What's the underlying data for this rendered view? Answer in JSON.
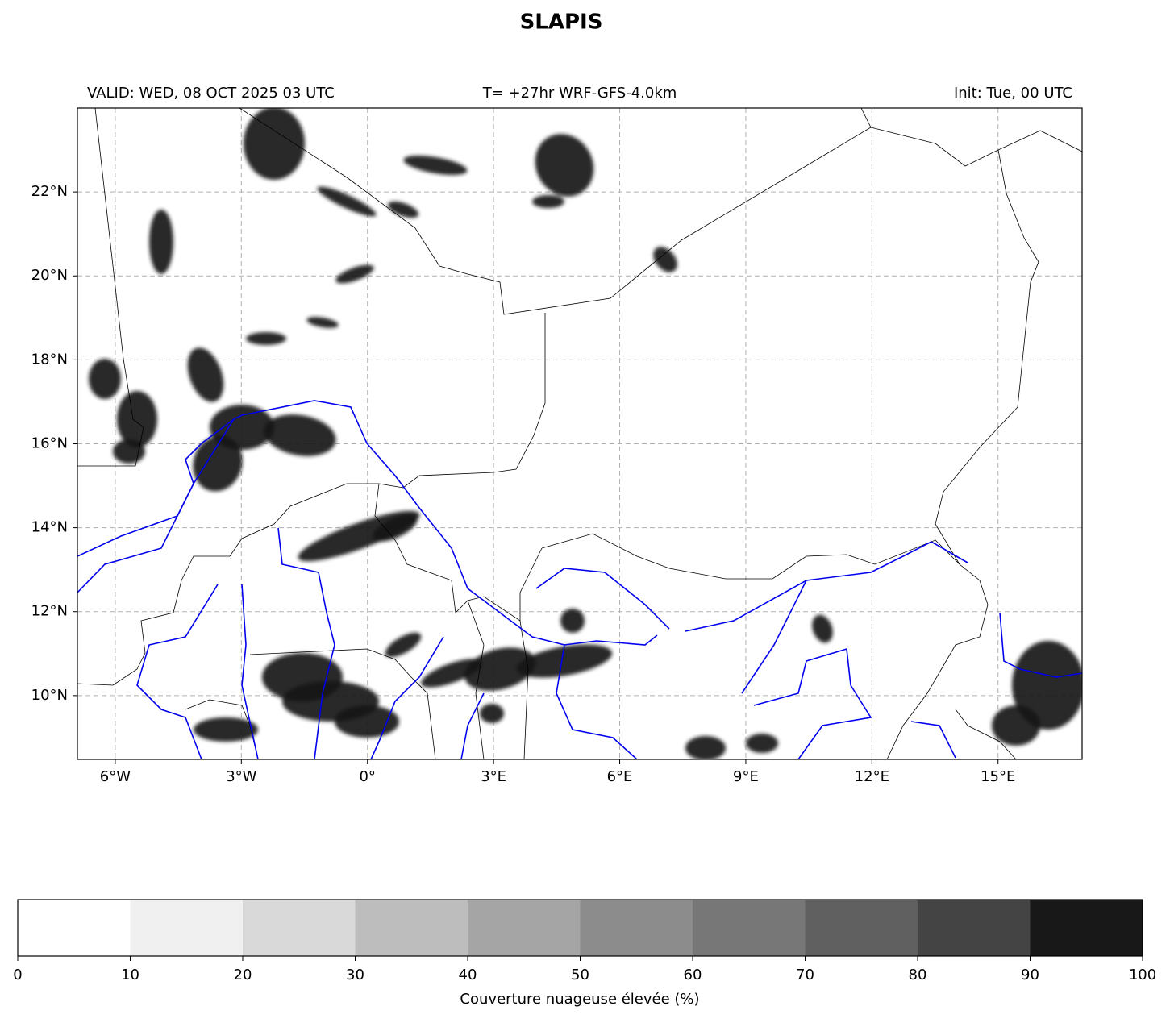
{
  "chart_data": {
    "type": "map",
    "title": "SLAPIS",
    "subtitle_left": "VALID: WED, 08 OCT 2025 03 UTC",
    "subtitle_center": "T= +27hr WRF-GFS-4.0km",
    "subtitle_right": "Init: Tue, 00 UTC",
    "xlim": [
      -6.9,
      17
    ],
    "ylim": [
      8.48,
      24
    ],
    "xticks": [
      {
        "value": -6,
        "label": "6°W"
      },
      {
        "value": -3,
        "label": "3°W"
      },
      {
        "value": 0,
        "label": "0°"
      },
      {
        "value": 3,
        "label": "3°E"
      },
      {
        "value": 6,
        "label": "6°E"
      },
      {
        "value": 9,
        "label": "9°E"
      },
      {
        "value": 12,
        "label": "12°E"
      },
      {
        "value": 15,
        "label": "15°E"
      }
    ],
    "yticks": [
      {
        "value": 10,
        "label": "10°N"
      },
      {
        "value": 12,
        "label": "12°N"
      },
      {
        "value": 14,
        "label": "14°N"
      },
      {
        "value": 16,
        "label": "16°N"
      },
      {
        "value": 18,
        "label": "18°N"
      },
      {
        "value": 20,
        "label": "20°N"
      },
      {
        "value": 22,
        "label": "22°N"
      }
    ],
    "grid": true,
    "colorbar": {
      "label": "Couverture nuageuse élevée (%)",
      "levels": [
        0,
        10,
        20,
        30,
        40,
        50,
        60,
        70,
        80,
        90,
        100
      ],
      "colors": [
        "#ffffff",
        "#f0f0f0",
        "#d9d9d9",
        "#bdbdbd",
        "#a5a5a5",
        "#8c8c8c",
        "#777777",
        "#606060",
        "#444444",
        "#181818"
      ]
    }
  }
}
